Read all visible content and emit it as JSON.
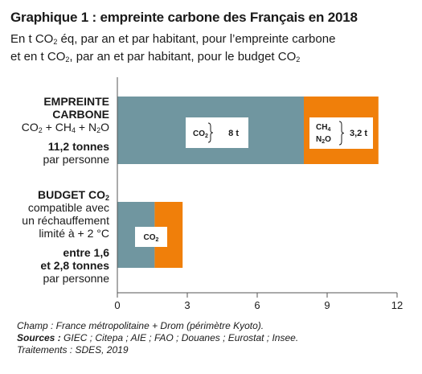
{
  "header": {
    "title": "Graphique 1 : empreinte carbone des Français en 2018",
    "subtitle_line1_a": "En t CO",
    "subtitle_line1_sub": "2",
    "subtitle_line1_b": " éq, par an et par habitant, pour l’empreinte carbone",
    "subtitle_line2_a": "et en t CO",
    "subtitle_line2_sub": "2",
    "subtitle_line2_b": ", par an et par habitant, pour le budget CO",
    "subtitle_line2_sub2": "2"
  },
  "labels": {
    "empreinte": {
      "line1": "EMPREINTE",
      "line2": "CARBONE",
      "gases": [
        "CO",
        "2",
        " + CH",
        "4",
        " + N",
        "2",
        "O"
      ],
      "total": "11,2 tonnes",
      "per": "par personne"
    },
    "budget": {
      "title_a": "BUDGET CO",
      "title_sub": "2",
      "line1": "compatible avec",
      "line2": "un réchauffement",
      "line3": "limité à + 2 °C",
      "range1": "entre 1,6",
      "range2": "et 2,8 tonnes",
      "per": "par personne"
    }
  },
  "chart_data": {
    "type": "bar",
    "orientation": "horizontal",
    "stacked": true,
    "categories": [
      "EMPREINTE CARBONE",
      "BUDGET CO2"
    ],
    "series": [
      {
        "values": [
          8,
          1.6
        ],
        "color": "#7096a0"
      },
      {
        "values": [
          3.2,
          1.2
        ],
        "color": "#f07f0a"
      }
    ],
    "xlim": [
      0,
      12
    ],
    "xticks": [
      "0",
      "3",
      "6",
      "9",
      "12"
    ],
    "grid": false,
    "annotations": {
      "co2_a": "CO",
      "co2_sub": "2",
      "co2_value": "8 t",
      "ch4_a": "CH",
      "ch4_sub": "4",
      "n2o_a": "N",
      "n2o_sub": "2",
      "n2o_b": "O",
      "other_value": "3,2 t",
      "budget_co2_a": "CO",
      "budget_co2_sub": "2"
    }
  },
  "footer": {
    "champ": "Champ : France métropolitaine + Drom (périmètre Kyoto).",
    "sources_label": "Sources :",
    "sources_text": " GIEC ; Citepa ; AIE ; FAO ; Douanes ; Eurostat ; Insee.",
    "traitements": "Traitements : SDES, 2019"
  }
}
